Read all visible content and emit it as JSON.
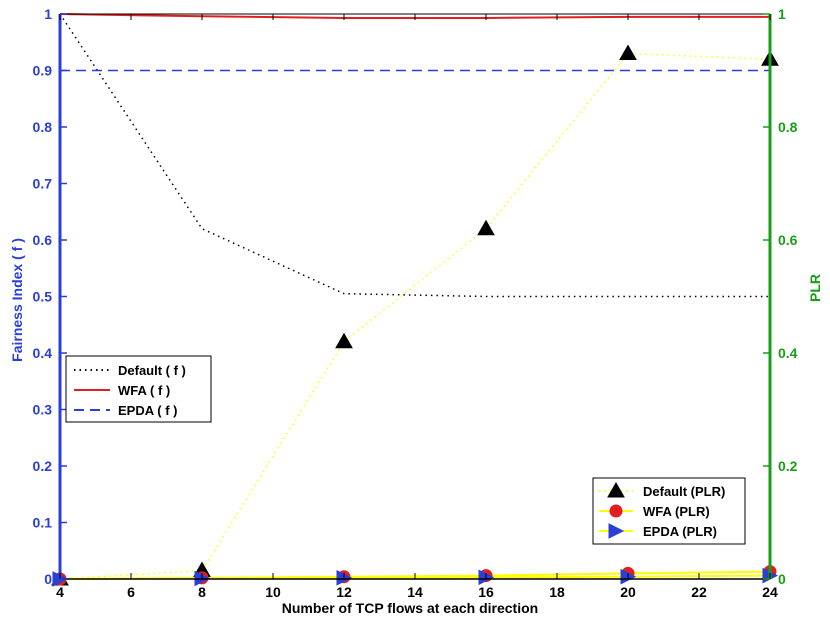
{
  "chart_data": {
    "type": "line",
    "title": "",
    "xlabel": "Number of TCP flows at each direction",
    "ylabel_left": "Fairness Index ( f )",
    "ylabel_right": "PLR",
    "xlim": [
      4,
      24
    ],
    "ylim_left": [
      0,
      1
    ],
    "ylim_right": [
      0,
      1
    ],
    "x_ticks": [
      4,
      6,
      8,
      10,
      12,
      14,
      16,
      18,
      20,
      22,
      24
    ],
    "y_left_ticks": [
      0,
      0.1,
      0.2,
      0.3,
      0.4,
      0.5,
      0.6,
      0.7,
      0.8,
      0.9,
      1
    ],
    "y_left_tick_labels": [
      "0",
      "0.1",
      "0.2",
      "0.3",
      "0.4",
      "0.5",
      "0.6",
      "0.7",
      "0.8",
      "0.9",
      "1"
    ],
    "y_right_ticks": [
      0,
      0.2,
      0.4,
      0.6,
      0.8,
      1
    ],
    "y_right_tick_labels": [
      "0",
      "0.2",
      "0.4",
      "0.6",
      "0.8",
      "1"
    ],
    "x": [
      4,
      8,
      12,
      16,
      20,
      24
    ],
    "series": [
      {
        "name": "Default ( f )",
        "axis": "left",
        "style": "dotted",
        "color": "#000000",
        "values": [
          1.0,
          0.62,
          0.505,
          0.5,
          0.5,
          0.5
        ]
      },
      {
        "name": "WFA ( f )",
        "axis": "left",
        "style": "solid",
        "color": "#e02020",
        "values": [
          1.0,
          0.996,
          0.993,
          0.993,
          0.995,
          0.995
        ]
      },
      {
        "name": "EPDA ( f )",
        "axis": "left",
        "style": "dashed",
        "color": "#2a3ed8",
        "values": [
          0.9,
          0.9,
          0.9,
          0.9,
          0.9,
          0.9
        ]
      },
      {
        "name": "Default (PLR)",
        "axis": "right",
        "style": "dotted",
        "color": "#ffff00",
        "marker": "triangle-up",
        "marker_color": "#000000",
        "values": [
          0.0,
          0.015,
          0.42,
          0.62,
          0.93,
          0.92
        ]
      },
      {
        "name": "WFA (PLR)",
        "axis": "right",
        "style": "solid",
        "color": "#ffff00",
        "marker": "circle",
        "marker_color": "#e02020",
        "values": [
          0.0,
          0.002,
          0.004,
          0.006,
          0.01,
          0.013
        ]
      },
      {
        "name": "EPDA (PLR)",
        "axis": "right",
        "style": "solid",
        "color": "#ffff00",
        "marker": "triangle-right",
        "marker_color": "#2a3ed8",
        "values": [
          0.0,
          0.001,
          0.002,
          0.003,
          0.004,
          0.006
        ]
      }
    ],
    "legend_left": [
      "Default ( f )",
      "WFA ( f )",
      "EPDA ( f )"
    ],
    "legend_right": [
      "Default (PLR)",
      "WFA (PLR)",
      "EPDA (PLR)"
    ],
    "colors": {
      "left_axis": "#2a3ed8",
      "right_axis": "#1a9e1a"
    }
  }
}
